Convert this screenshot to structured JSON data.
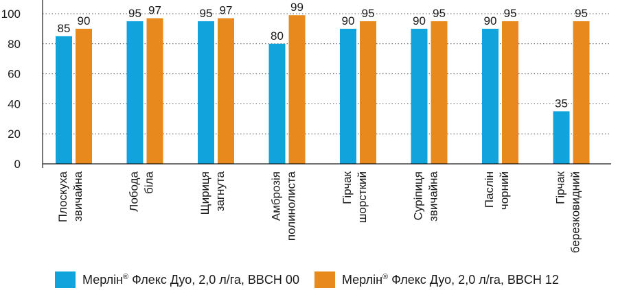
{
  "colors": {
    "series1": "#11a4dc",
    "series2": "#e8891e",
    "axis": "#1a1a1a",
    "grid": "#555555"
  },
  "chart_data": {
    "type": "bar",
    "categories": [
      [
        "Плоскуха",
        "звичайна"
      ],
      [
        "Лобода",
        "біла"
      ],
      [
        "Щириця",
        "загнута"
      ],
      [
        "Амброзія",
        "полинолиста"
      ],
      [
        "Гірчак",
        "шорсткий"
      ],
      [
        "Суріпиця",
        "звичайна"
      ],
      [
        "Паслін",
        "чорний"
      ],
      [
        "Гірчак",
        "березковидний"
      ]
    ],
    "series": [
      {
        "name": "Мерлін® Флекс Дуо, 2,0 л/га, BBCH 00",
        "values": [
          85,
          95,
          95,
          80,
          90,
          90,
          90,
          35
        ]
      },
      {
        "name": "Мерлін® Флекс Дуо, 2,0 л/га, BBCH 12",
        "values": [
          90,
          97,
          97,
          99,
          95,
          95,
          95,
          95
        ]
      }
    ],
    "ylim": [
      0,
      100
    ],
    "yticks": [
      0,
      20,
      40,
      60,
      80,
      100
    ],
    "grid": true,
    "legend": "bottom"
  },
  "legend": {
    "item1_prefix": "Мерлін",
    "item1_sup": "®",
    "item1_suffix": " Флекс Дуо, 2,0 л/га, BBCH 00",
    "item2_prefix": "Мерлін",
    "item2_sup": "®",
    "item2_suffix": " Флекс Дуо, 2,0 л/га, BBCH 12"
  }
}
